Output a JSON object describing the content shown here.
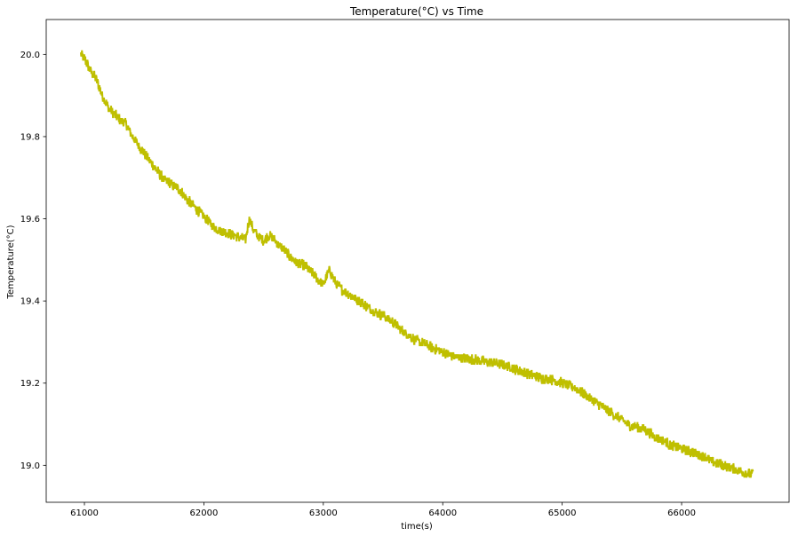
{
  "chart_data": {
    "type": "line",
    "title": "Temperature(°C) vs Time",
    "xlabel": "time(s)",
    "ylabel": "Temperature(°C)",
    "xlim": [
      60680,
      66900
    ],
    "ylim": [
      18.91,
      20.085
    ],
    "xticks": [
      61000,
      62000,
      63000,
      64000,
      65000,
      66000
    ],
    "yticks": [
      19.0,
      19.2,
      19.4,
      19.6,
      19.8,
      20.0
    ],
    "xtick_labels": [
      "61000",
      "62000",
      "63000",
      "64000",
      "65000",
      "66000"
    ],
    "ytick_labels": [
      "19.0",
      "19.2",
      "19.4",
      "19.6",
      "19.8",
      "20.0"
    ],
    "grid": false,
    "series": [
      {
        "name": "Temperature",
        "color": "#bfbf00",
        "x": [
          60970,
          61000,
          61050,
          61100,
          61150,
          61200,
          61250,
          61300,
          61350,
          61400,
          61450,
          61500,
          61550,
          61600,
          61650,
          61700,
          61750,
          61800,
          61850,
          61900,
          61950,
          62000,
          62050,
          62100,
          62150,
          62200,
          62250,
          62300,
          62350,
          62380,
          62420,
          62460,
          62500,
          62550,
          62600,
          62650,
          62700,
          62750,
          62800,
          62850,
          62900,
          62950,
          63000,
          63050,
          63100,
          63150,
          63200,
          63250,
          63300,
          63350,
          63400,
          63450,
          63500,
          63550,
          63600,
          63650,
          63700,
          63750,
          63800,
          63850,
          63900,
          63950,
          64000,
          64050,
          64100,
          64150,
          64200,
          64250,
          64300,
          64350,
          64400,
          64450,
          64500,
          64550,
          64600,
          64650,
          64700,
          64750,
          64800,
          64850,
          64900,
          64950,
          65000,
          65050,
          65100,
          65150,
          65200,
          65250,
          65300,
          65350,
          65400,
          65450,
          65500,
          65550,
          65600,
          65650,
          65700,
          65750,
          65800,
          65850,
          65900,
          65950,
          66000,
          66050,
          66100,
          66150,
          66200,
          66250,
          66300,
          66350,
          66400,
          66450,
          66500,
          66550,
          66600
        ],
        "y": [
          20.0,
          19.99,
          19.96,
          19.94,
          19.9,
          19.87,
          19.855,
          19.84,
          19.83,
          19.8,
          19.78,
          19.76,
          19.74,
          19.72,
          19.7,
          19.69,
          19.68,
          19.67,
          19.65,
          19.635,
          19.62,
          19.605,
          19.59,
          19.578,
          19.57,
          19.565,
          19.56,
          19.555,
          19.55,
          19.6,
          19.57,
          19.555,
          19.548,
          19.56,
          19.545,
          19.53,
          19.515,
          19.5,
          19.49,
          19.485,
          19.47,
          19.455,
          19.44,
          19.475,
          19.445,
          19.43,
          19.42,
          19.41,
          19.4,
          19.39,
          19.38,
          19.37,
          19.365,
          19.355,
          19.345,
          19.33,
          19.32,
          19.31,
          19.3,
          19.295,
          19.288,
          19.282,
          19.276,
          19.27,
          19.265,
          19.262,
          19.26,
          19.258,
          19.255,
          19.252,
          19.25,
          19.248,
          19.245,
          19.24,
          19.235,
          19.23,
          19.225,
          19.22,
          19.215,
          19.21,
          19.21,
          19.205,
          19.2,
          19.195,
          19.19,
          19.18,
          19.17,
          19.16,
          19.15,
          19.14,
          19.13,
          19.12,
          19.11,
          19.1,
          19.095,
          19.09,
          19.085,
          19.075,
          19.065,
          19.06,
          19.05,
          19.045,
          19.04,
          19.035,
          19.03,
          19.025,
          19.02,
          19.01,
          19.005,
          19.0,
          18.995,
          18.99,
          18.985,
          18.98,
          18.978
        ],
        "noise_amplitude": 0.012
      }
    ]
  }
}
